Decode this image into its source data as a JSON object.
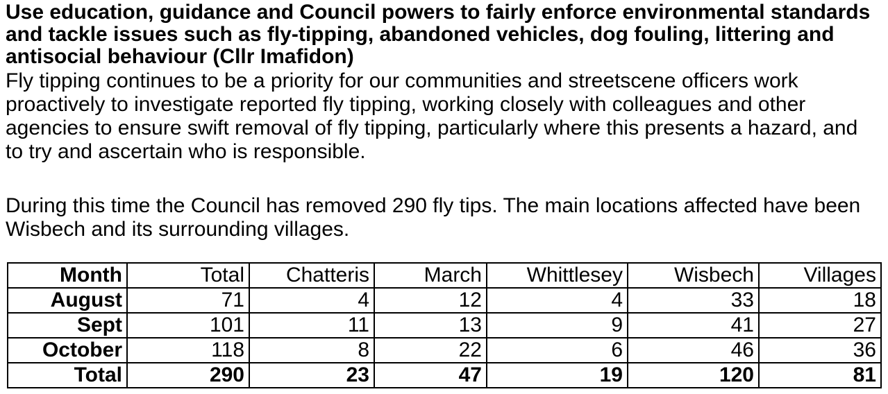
{
  "document": {
    "heading": "Use education, guidance and Council powers to fairly enforce environmental standards and tackle issues such as fly-tipping, abandoned vehicles, dog fouling, littering and antisocial behaviour (Cllr Imafidon)",
    "paragraph1": "Fly tipping continues to be a priority for our communities and streetscene officers work proactively to investigate reported fly tipping, working closely with colleagues and other agencies to ensure swift removal of fly tipping, particularly where this presents a hazard, and to try and ascertain who is responsible.",
    "paragraph2": "During this time the Council has removed 290 fly tips. The main locations affected have been Wisbech and its surrounding villages."
  },
  "table": {
    "columns": [
      "Month",
      "Total",
      "Chatteris",
      "March",
      "Whittlesey",
      "Wisbech",
      "Villages"
    ],
    "rows": [
      {
        "label": "August",
        "values": [
          71,
          4,
          12,
          4,
          33,
          18
        ]
      },
      {
        "label": "Sept",
        "values": [
          101,
          11,
          13,
          9,
          41,
          27
        ]
      },
      {
        "label": "October",
        "values": [
          118,
          8,
          22,
          6,
          46,
          36
        ]
      }
    ],
    "total_row": {
      "label": "Total",
      "values": [
        290,
        23,
        47,
        19,
        120,
        81
      ]
    }
  }
}
